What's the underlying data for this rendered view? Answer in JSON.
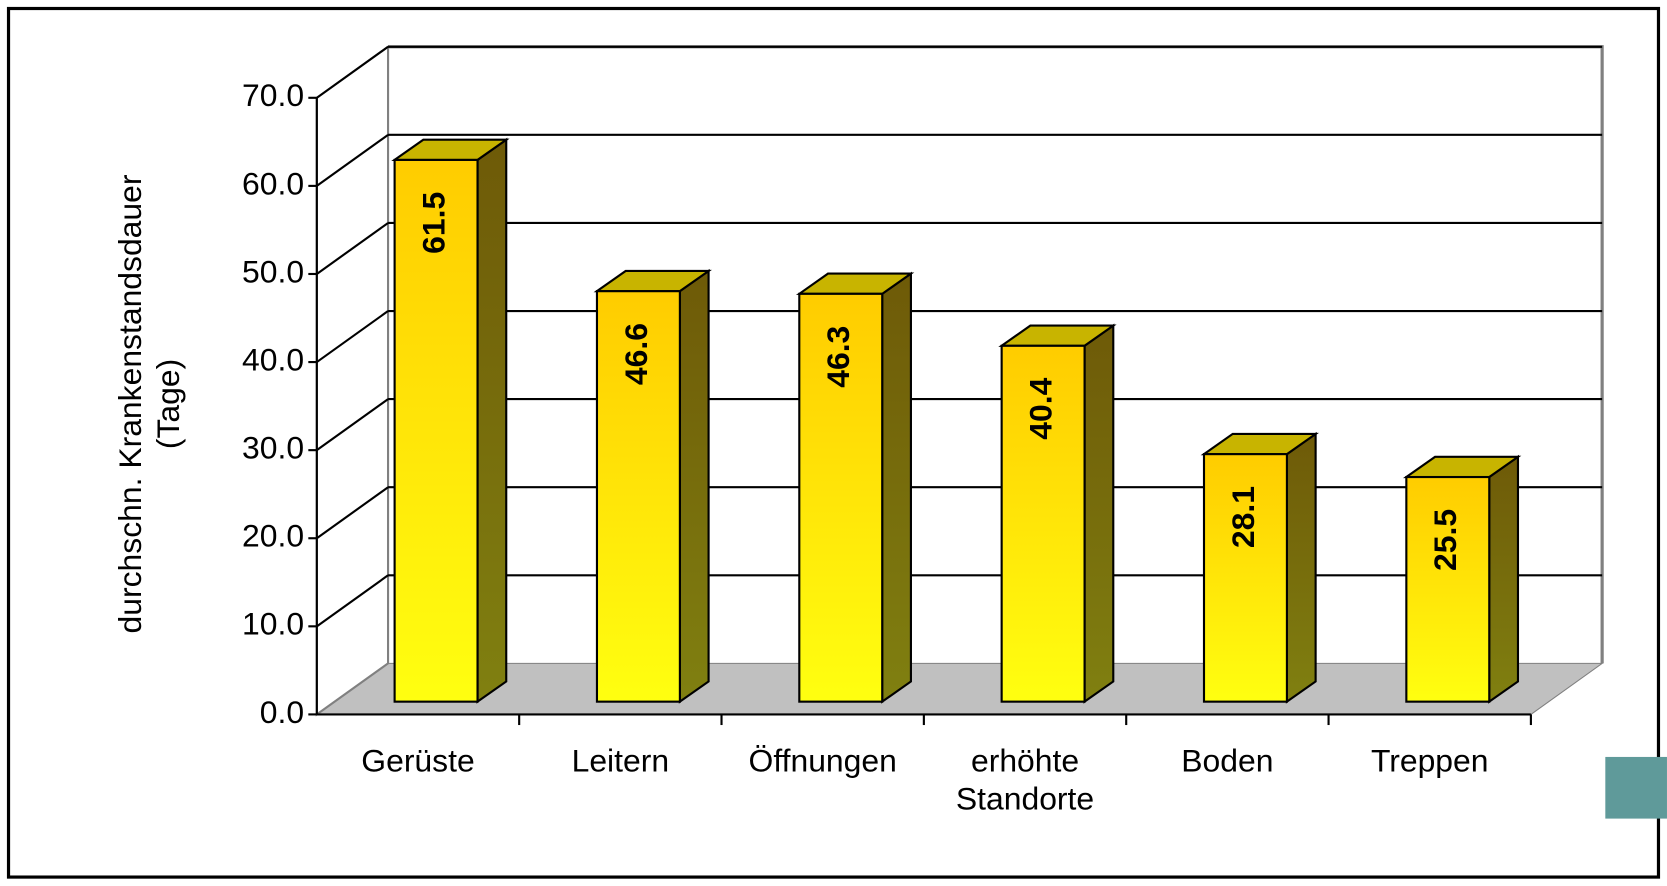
{
  "chart_data": {
    "type": "bar3d",
    "y_label": "durchschn. Krankenstandsdauer\n(Tage)",
    "categories": [
      "Gerüste",
      "Leitern",
      "Öffnungen",
      "erhöhte\nStandorte",
      "Boden",
      "Treppen"
    ],
    "values": [
      61.5,
      46.6,
      46.3,
      40.4,
      28.1,
      25.5
    ],
    "color": "#ffd700",
    "ylim": [
      0,
      70
    ],
    "yticks": [
      {
        "value": 0,
        "label": "0.0"
      },
      {
        "value": 10,
        "label": "10.0"
      },
      {
        "value": 20,
        "label": "20.0"
      },
      {
        "value": 30,
        "label": "30.0"
      },
      {
        "value": 40,
        "label": "40.0"
      },
      {
        "value": 50,
        "label": "50.0"
      },
      {
        "value": 60,
        "label": "60.0"
      },
      {
        "value": 70,
        "label": "70.0"
      }
    ],
    "grid": true
  }
}
